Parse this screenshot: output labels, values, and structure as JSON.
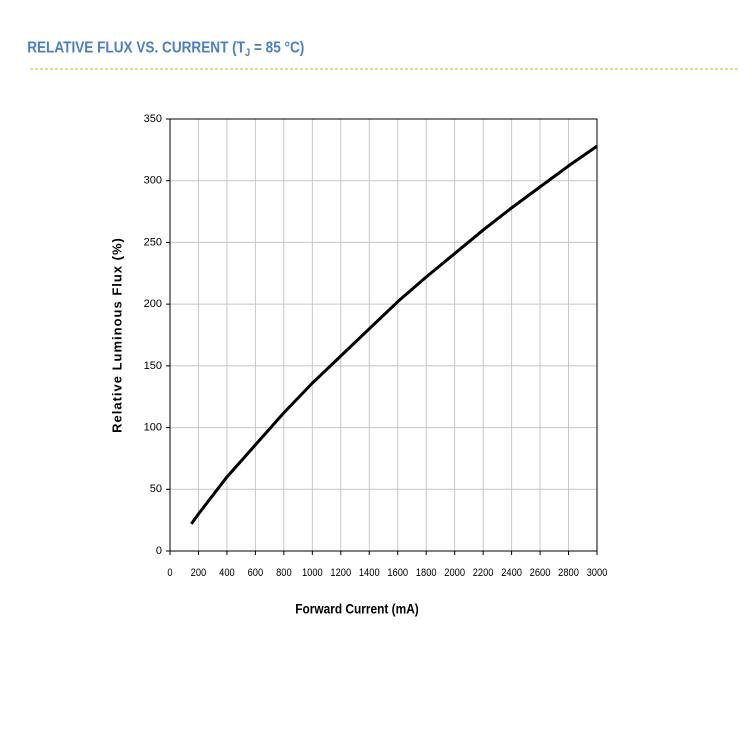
{
  "chart_data": {
    "type": "line",
    "title": [
      "RELATIVE FLUX VS. CURRENT (T",
      "J",
      " = 85 °C)"
    ],
    "x_label": "Forward Current (mA)",
    "y_label": "Relative Luminous Flux (%)",
    "x": [
      150,
      200,
      400,
      600,
      800,
      1000,
      1200,
      1400,
      1600,
      1800,
      2000,
      2200,
      2400,
      2600,
      2800,
      3000
    ],
    "series": [
      {
        "color": "#000000",
        "values": [
          22,
          30,
          60,
          86,
          112,
          136,
          158,
          180,
          202,
          222,
          241,
          260,
          278,
          295,
          312,
          328
        ]
      }
    ],
    "xlim": [
      0,
      3000
    ],
    "xticks": [
      0,
      200,
      400,
      600,
      800,
      1000,
      1200,
      1400,
      1600,
      1800,
      2000,
      2200,
      2400,
      2600,
      2800,
      3000
    ],
    "ylim": [
      0,
      350
    ],
    "yticks": [
      0,
      50,
      100,
      150,
      200,
      250,
      300,
      350
    ],
    "grid": true
  }
}
